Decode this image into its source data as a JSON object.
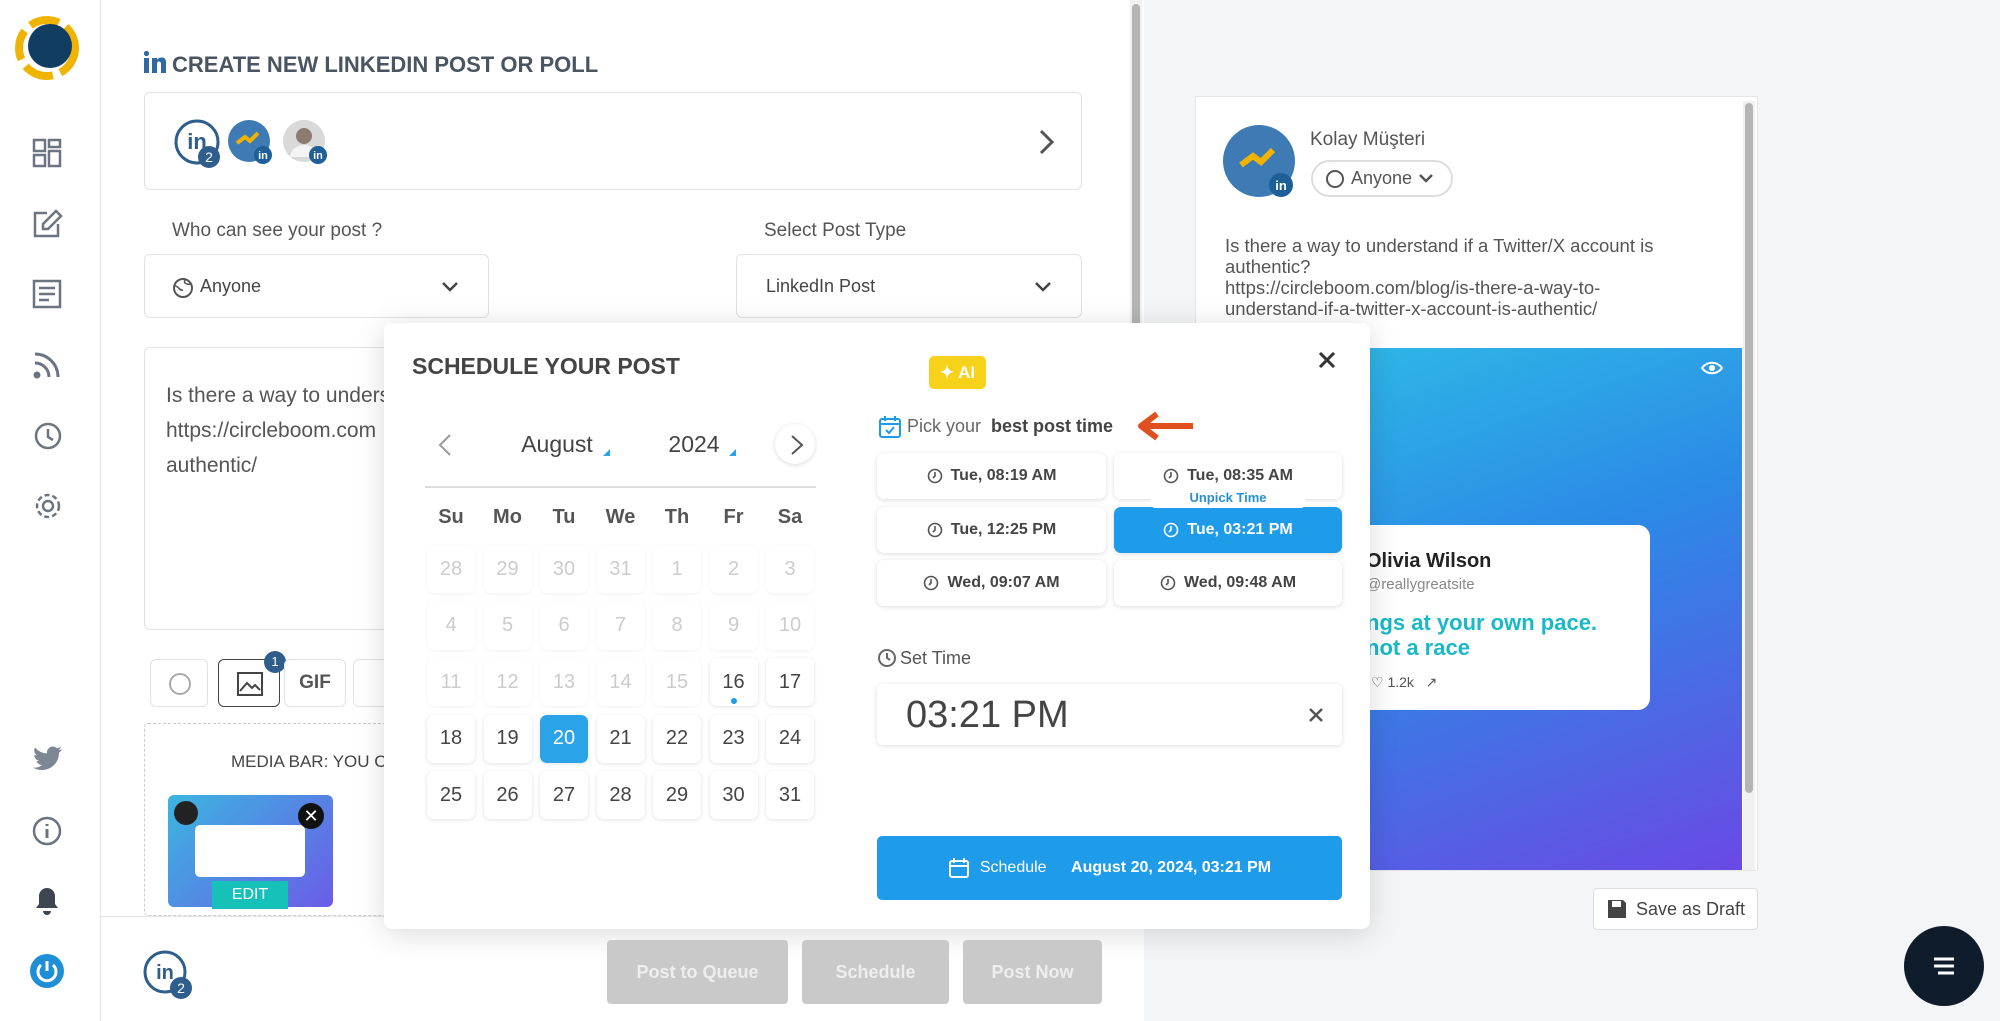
{
  "header": {
    "title": "CREATE NEW LINKEDIN POST OR POLL"
  },
  "accounts": {
    "badge": 2
  },
  "visibility": {
    "label": "Who can see your post ?",
    "value": "Anyone"
  },
  "post_type": {
    "label": "Select Post Type",
    "value": "LinkedIn Post"
  },
  "editor": {
    "lines": [
      "Is there a way to unders",
      "https://circleboom.com",
      "authentic/"
    ]
  },
  "toolbar": {
    "gif": "GIF",
    "badge": 1
  },
  "media_bar": {
    "label": "MEDIA BAR: YOU C",
    "edit": "EDIT"
  },
  "footer": {
    "badge": 2,
    "buttons": [
      "Post to Queue",
      "Schedule",
      "Post Now"
    ]
  },
  "preview": {
    "name": "Kolay Müşteri",
    "audience": "Anyone",
    "lines": [
      "Is there a way to understand if a Twitter/X account is",
      "authentic?",
      "https://circleboom.com/blog/is-there-a-way-to-",
      "understand-if-a-twitter-x-account-is-authentic/"
    ],
    "card": {
      "name": "Olivia Wilson",
      "handle": "@reallygreatsite",
      "quote": [
        "ngs at your own pace.",
        "not a race"
      ],
      "likes": "1.2k"
    }
  },
  "save_draft": "Save as Draft",
  "modal": {
    "title": "SCHEDULE YOUR POST",
    "ai": "AI",
    "calendar": {
      "month": "August",
      "year": 2024,
      "weekdays": [
        "Su",
        "Mo",
        "Tu",
        "We",
        "Th",
        "Fr",
        "Sa"
      ],
      "days": [
        {
          "day": 28,
          "disabled": true
        },
        {
          "day": 29,
          "disabled": true
        },
        {
          "day": 30,
          "disabled": true
        },
        {
          "day": 31,
          "disabled": true
        },
        {
          "day": 1,
          "disabled": true
        },
        {
          "day": 2,
          "disabled": true
        },
        {
          "day": 3,
          "disabled": true
        },
        {
          "day": 4,
          "disabled": true
        },
        {
          "day": 5,
          "disabled": true
        },
        {
          "day": 6,
          "disabled": true
        },
        {
          "day": 7,
          "disabled": true
        },
        {
          "day": 8,
          "disabled": true
        },
        {
          "day": 9,
          "disabled": true
        },
        {
          "day": 10,
          "disabled": true
        },
        {
          "day": 11,
          "disabled": true
        },
        {
          "day": 12,
          "disabled": true
        },
        {
          "day": 13,
          "disabled": true
        },
        {
          "day": 14,
          "disabled": true
        },
        {
          "day": 15,
          "disabled": true
        },
        {
          "day": 16,
          "dot": true
        },
        {
          "day": 17
        },
        {
          "day": 18
        },
        {
          "day": 19
        },
        {
          "day": 20,
          "selected": true
        },
        {
          "day": 21
        },
        {
          "day": 22
        },
        {
          "day": 23
        },
        {
          "day": 24
        },
        {
          "day": 25
        },
        {
          "day": 26
        },
        {
          "day": 27
        },
        {
          "day": 28
        },
        {
          "day": 29
        },
        {
          "day": 30
        },
        {
          "day": 31
        }
      ]
    },
    "pick": {
      "prefix": "Pick your",
      "strong": "best post time"
    },
    "times": [
      {
        "label": "Tue, 08:19 AM"
      },
      {
        "label": "Tue, 08:35 AM"
      },
      {
        "label": "Tue, 12:25 PM"
      },
      {
        "label": "Tue, 03:21 PM",
        "selected": true
      },
      {
        "label": "Wed, 09:07 AM"
      },
      {
        "label": "Wed, 09:48 AM"
      }
    ],
    "unpick": "Unpick Time",
    "set_time": {
      "label": "Set Time",
      "value": "03:21 PM"
    },
    "schedule": {
      "label": "Schedule",
      "date": "August 20, 2024, 03:21 PM"
    }
  }
}
